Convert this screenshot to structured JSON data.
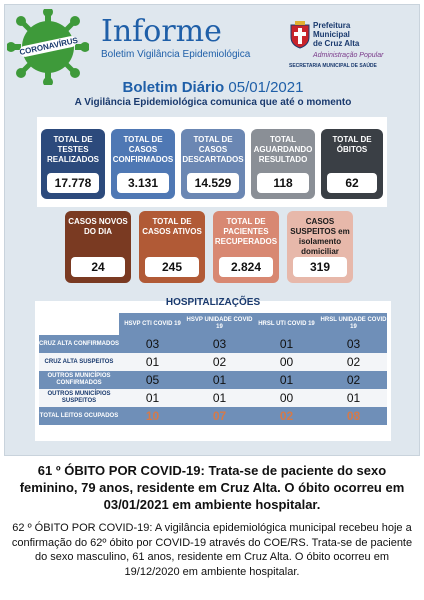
{
  "header": {
    "badge_text": "CORONAVÍRUS",
    "title": "Informe",
    "subtitle": "Boletim Vigilância Epidemiológica",
    "prefeitura_line1": "Prefeitura",
    "prefeitura_line2": "Municipal",
    "prefeitura_line3": "de Cruz Alta",
    "slogan": "Administração Popular",
    "secretaria": "SECRETARIA MUNICIPAL DE SAÚDE"
  },
  "boletim": {
    "label": "Boletim Diário",
    "date": "05/01/2021",
    "intro": "A Vigilância Epidemiológica comunica que até o momento"
  },
  "colors": {
    "navy": "#2c4a7c",
    "blue": "#4f78b4",
    "steel": "#6b87b3",
    "gray": "#8a8f96",
    "charcoal": "#3a3f45",
    "brown": "#7a3a22",
    "orange_brown": "#b15a36",
    "salmon": "#d88872",
    "pink": "#e7b8aa",
    "accent_blue": "#1f5fa8"
  },
  "top_cards": [
    {
      "label": "TOTAL DE TESTES REALIZADOS",
      "value": "17.778"
    },
    {
      "label": "TOTAL DE CASOS CONFIRMADOS",
      "value": "3.131"
    },
    {
      "label": "TOTAL DE CASOS DESCARTADOS",
      "value": "14.529"
    },
    {
      "label": "TOTAL AGUARDANDO RESULTADO",
      "value": "118"
    },
    {
      "label": "TOTAL DE ÓBITOS",
      "value": "62"
    }
  ],
  "mid_cards": [
    {
      "label": "CASOS NOVOS DO DIA",
      "value": "24"
    },
    {
      "label": "TOTAL DE CASOS ATIVOS",
      "value": "245"
    },
    {
      "label": "TOTAL DE PACIENTES RECUPERADOS",
      "value": "2.824"
    },
    {
      "label": "CASOS SUSPEITOS em isolamento domiciliar",
      "value": "319"
    }
  ],
  "hospitalizacoes": {
    "title": "HOSPITALIZAÇÕES",
    "columns": [
      "HSVP CTI COVID 19",
      "HSVP UNIDADE COVID 19",
      "HRSL UTI COVID 19",
      "HRSL UNIDADE COVID 19"
    ],
    "rows": [
      {
        "label": "CRUZ ALTA CONFIRMADOS",
        "values": [
          "03",
          "03",
          "01",
          "03"
        ]
      },
      {
        "label": "CRUZ ALTA SUSPEITOS",
        "values": [
          "01",
          "02",
          "00",
          "02"
        ]
      },
      {
        "label": "OUTROS MUNICÍPIOS CONFIRMADOS",
        "values": [
          "05",
          "01",
          "01",
          "02"
        ]
      },
      {
        "label": "OUTROS MUNICÍPIOS SUSPEITOS",
        "values": [
          "01",
          "01",
          "00",
          "01"
        ]
      },
      {
        "label": "TOTAL LEITOS OCUPADOS",
        "values": [
          "10",
          "07",
          "02",
          "08"
        ]
      }
    ]
  },
  "notes": {
    "obito61": "61 º ÓBITO POR COVID-19: Trata-se de paciente do sexo feminino, 79 anos, residente em Cruz Alta. O óbito ocorreu em 03/01/2021 em ambiente hospitalar.",
    "obito62": "62 º ÓBITO POR COVID-19: A vigilância epidemiológica municipal recebeu hoje a confirmação do 62º óbito por COVID-19 através do COE/RS. Trata-se de paciente do sexo masculino, 61 anos, residente em Cruz Alta. O óbito ocorreu em 19/12/2020 em ambiente hospitalar."
  }
}
